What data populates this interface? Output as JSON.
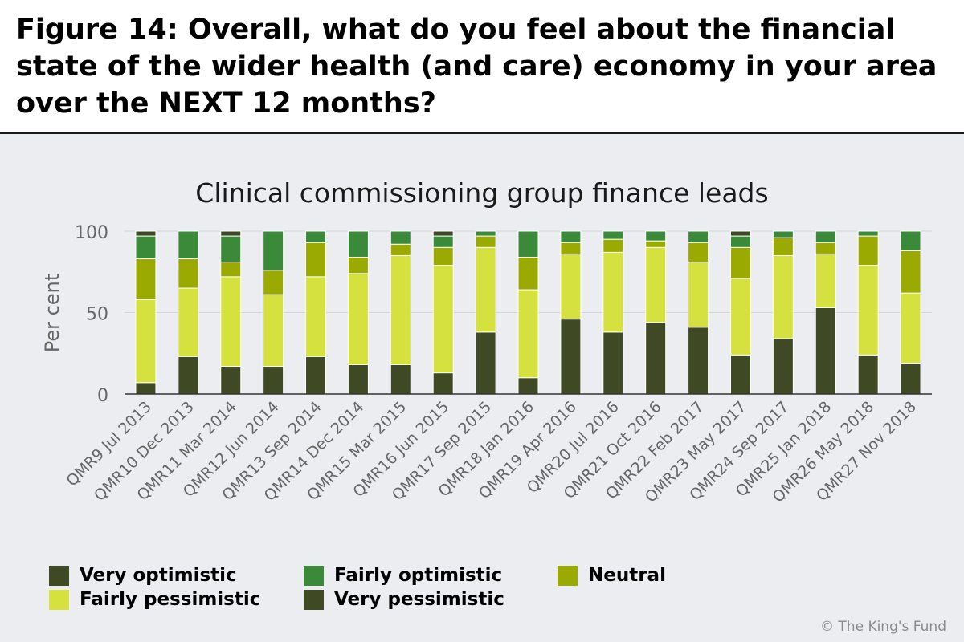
{
  "figure": {
    "title": "Figure 14: Overall, what do you feel about the financial state of the wider health (and care) economy in your area over the NEXT 12 months?",
    "copyright": "© The King's Fund"
  },
  "chart_data": {
    "type": "bar",
    "stacked": true,
    "title": "Clinical commissioning group finance leads",
    "ylabel": "Per cent",
    "xlabel": "",
    "ylim": [
      0,
      100
    ],
    "yticks": [
      0,
      50,
      100
    ],
    "grid": true,
    "legend_position": "bottom",
    "categories": [
      "QMR9 Jul 2013",
      "QMR10 Dec 2013",
      "QMR11 Mar 2014",
      "QMR12 Jun 2014",
      "QMR13 Sep 2014",
      "QMR14 Dec 2014",
      "QMR15 Mar 2015",
      "QMR16 Jun 2015",
      "QMR17 Sep 2015",
      "QMR18 Jan 2016",
      "QMR19 Apr 2016",
      "QMR20 Jul 2016",
      "QMR21 Oct 2016",
      "QMR22 Feb 2017",
      "QMR23 May 2017",
      "QMR24 Sep 2017",
      "QMR25 Jan 2018",
      "QMR26 May 2018",
      "QMR27 Nov 2018"
    ],
    "series": [
      {
        "name": "Very pessimistic",
        "color": "#3f4a24",
        "values": [
          7,
          23,
          17,
          17,
          23,
          18,
          18,
          13,
          38,
          10,
          46,
          38,
          44,
          41,
          24,
          34,
          53,
          24,
          19
        ]
      },
      {
        "name": "Fairly pessimistic",
        "color": "#d5e13e",
        "values": [
          51,
          42,
          55,
          44,
          49,
          56,
          67,
          66,
          52,
          54,
          40,
          49,
          46,
          40,
          47,
          51,
          33,
          55,
          43
        ]
      },
      {
        "name": "Neutral",
        "color": "#9aaa00",
        "values": [
          25,
          18,
          9,
          15,
          21,
          10,
          7,
          11,
          7,
          20,
          7,
          8,
          4,
          12,
          19,
          11,
          7,
          18,
          26
        ]
      },
      {
        "name": "Fairly optimistic",
        "color": "#3a8a3a",
        "values": [
          14,
          17,
          16,
          24,
          7,
          16,
          8,
          7,
          3,
          16,
          7,
          5,
          6,
          7,
          7,
          4,
          7,
          3,
          12
        ]
      },
      {
        "name": "Very optimistic",
        "color": "#3f4a24",
        "values": [
          3,
          0,
          3,
          0,
          0,
          0,
          0,
          3,
          0,
          0,
          0,
          0,
          0,
          0,
          3,
          0,
          0,
          0,
          0
        ]
      }
    ],
    "legend": [
      {
        "label": "Very optimistic",
        "color": "#3f4a24"
      },
      {
        "label": "Fairly optimistic",
        "color": "#3a8a3a"
      },
      {
        "label": "Neutral",
        "color": "#9aaa00"
      },
      {
        "label": "Fairly pessimistic",
        "color": "#d5e13e"
      },
      {
        "label": "Very pessimistic",
        "color": "#3f4a24"
      }
    ]
  }
}
